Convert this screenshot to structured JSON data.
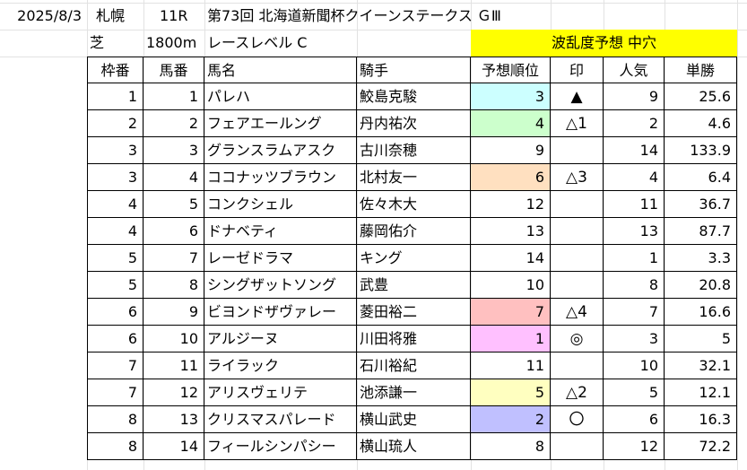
{
  "header": {
    "date": "2025/8/3",
    "venue": "札幌",
    "race_no": "11R",
    "race_title": "第73回 北海道新聞杯クイーンステークス ＧⅢ",
    "surface": "芝",
    "distance": "1800m",
    "race_level": "レースレベル C",
    "forecast": "波乱度予想 中穴"
  },
  "columns": [
    "枠番",
    "馬番",
    "馬名",
    "騎手",
    "予想順位",
    "印",
    "人気",
    "単勝"
  ],
  "rows": [
    {
      "waku": "1",
      "uma": "1",
      "name": "パレハ",
      "jockey": "鮫島克駿",
      "rank": "3",
      "mark": "▲",
      "ninki": "9",
      "odds": "25.6",
      "rank_color": "#ccffff"
    },
    {
      "waku": "2",
      "uma": "2",
      "name": "フェアエールング",
      "jockey": "丹内祐次",
      "rank": "4",
      "mark": "△1",
      "ninki": "2",
      "odds": "4.6",
      "rank_color": "#ccffcc"
    },
    {
      "waku": "3",
      "uma": "3",
      "name": "グランスラムアスク",
      "jockey": "古川奈穂",
      "rank": "9",
      "mark": "",
      "ninki": "14",
      "odds": "133.9",
      "rank_color": ""
    },
    {
      "waku": "3",
      "uma": "4",
      "name": "ココナッツブラウン",
      "jockey": "北村友一",
      "rank": "6",
      "mark": "△3",
      "ninki": "4",
      "odds": "6.4",
      "rank_color": "#ffe0c0"
    },
    {
      "waku": "4",
      "uma": "5",
      "name": "コンクシェル",
      "jockey": "佐々木大",
      "rank": "12",
      "mark": "",
      "ninki": "11",
      "odds": "36.7",
      "rank_color": ""
    },
    {
      "waku": "4",
      "uma": "6",
      "name": "ドナベティ",
      "jockey": "藤岡佑介",
      "rank": "13",
      "mark": "",
      "ninki": "13",
      "odds": "87.7",
      "rank_color": ""
    },
    {
      "waku": "5",
      "uma": "7",
      "name": "レーゼドラマ",
      "jockey": "キング",
      "rank": "14",
      "mark": "",
      "ninki": "1",
      "odds": "3.3",
      "rank_color": ""
    },
    {
      "waku": "5",
      "uma": "8",
      "name": "シングザットソング",
      "jockey": "武豊",
      "rank": "10",
      "mark": "",
      "ninki": "8",
      "odds": "20.8",
      "rank_color": ""
    },
    {
      "waku": "6",
      "uma": "9",
      "name": "ビヨンドザヴァレー",
      "jockey": "菱田裕二",
      "rank": "7",
      "mark": "△4",
      "ninki": "7",
      "odds": "16.6",
      "rank_color": "#ffc0c0"
    },
    {
      "waku": "6",
      "uma": "10",
      "name": "アルジーヌ",
      "jockey": "川田将雅",
      "rank": "1",
      "mark": "◎",
      "ninki": "3",
      "odds": "5",
      "rank_color": "#ffc0ff"
    },
    {
      "waku": "7",
      "uma": "11",
      "name": "ライラック",
      "jockey": "石川裕紀",
      "rank": "11",
      "mark": "",
      "ninki": "10",
      "odds": "32.1",
      "rank_color": ""
    },
    {
      "waku": "7",
      "uma": "12",
      "name": "アリスヴェリテ",
      "jockey": "池添謙一",
      "rank": "5",
      "mark": "△2",
      "ninki": "5",
      "odds": "12.1",
      "rank_color": "#ffffc0"
    },
    {
      "waku": "8",
      "uma": "13",
      "name": "クリスマスパレード",
      "jockey": "横山武史",
      "rank": "2",
      "mark": "〇",
      "ninki": "6",
      "odds": "16.3",
      "rank_color": "#c0c0ff"
    },
    {
      "waku": "8",
      "uma": "14",
      "name": "フィールシンパシー",
      "jockey": "横山琉人",
      "rank": "8",
      "mark": "",
      "ninki": "12",
      "odds": "72.2",
      "rank_color": ""
    }
  ]
}
